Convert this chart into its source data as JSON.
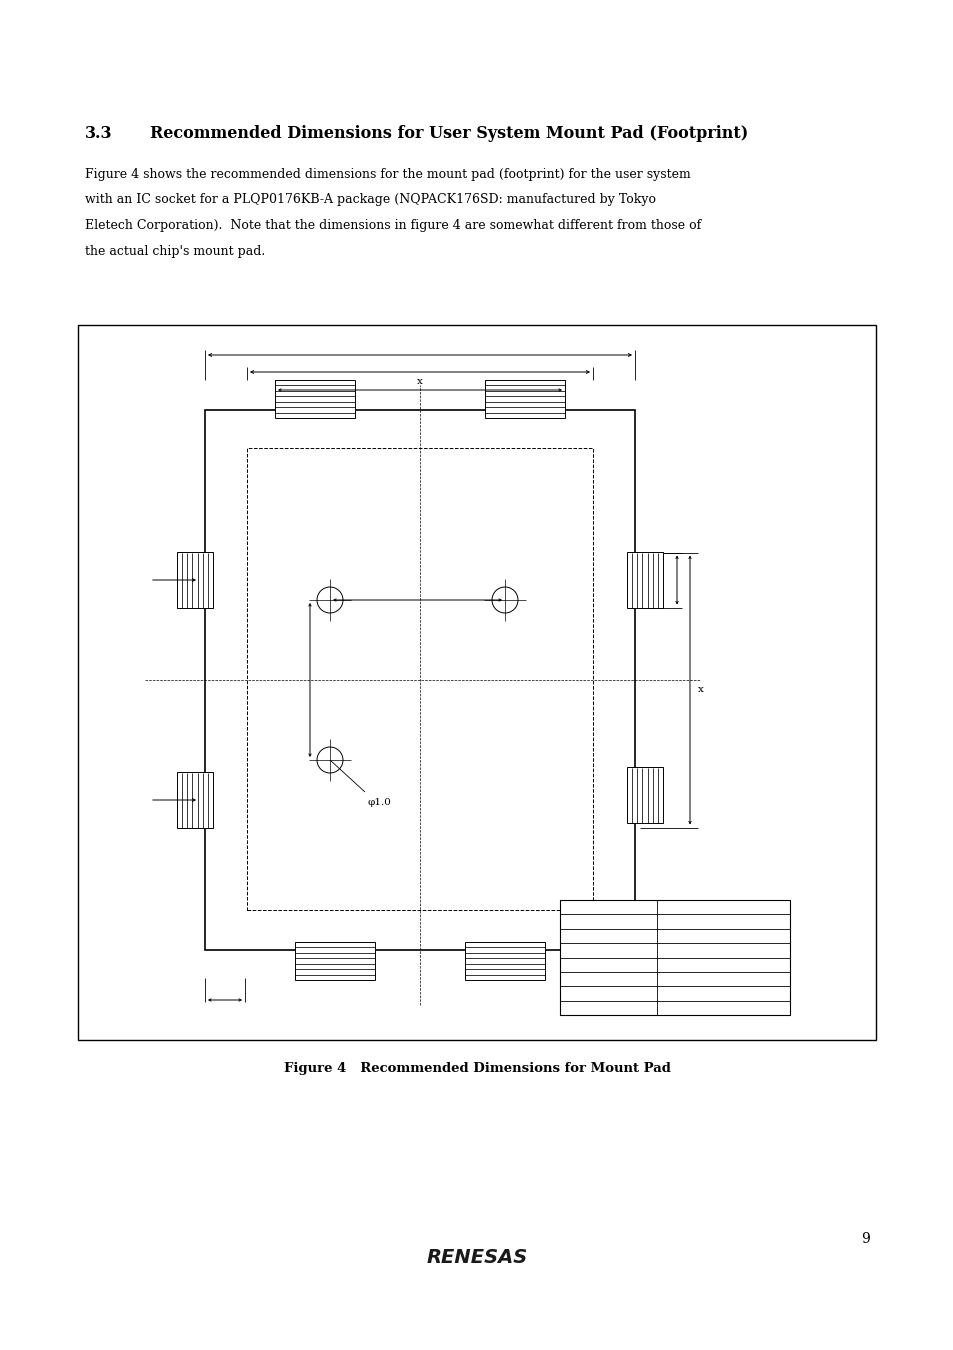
{
  "page_width": 9.54,
  "page_height": 13.5,
  "bg_color": "#ffffff",
  "heading_number": "3.3",
  "heading_text": "Recommended Dimensions for User System Mount Pad (Footprint)",
  "body_text_lines": [
    "Figure 4 shows the recommended dimensions for the mount pad (footprint) for the user system",
    "with an IC socket for a PLQP0176KB-A package (NQPACK176SD: manufactured by Tokyo",
    "Eletech Corporation).  Note that the dimensions in figure 4 are somewhat different from those of",
    "the actual chip's mount pad."
  ],
  "figure_caption": "Figure 4   Recommended Dimensions for Mount Pad",
  "page_number": "9",
  "font_color": "#000000"
}
